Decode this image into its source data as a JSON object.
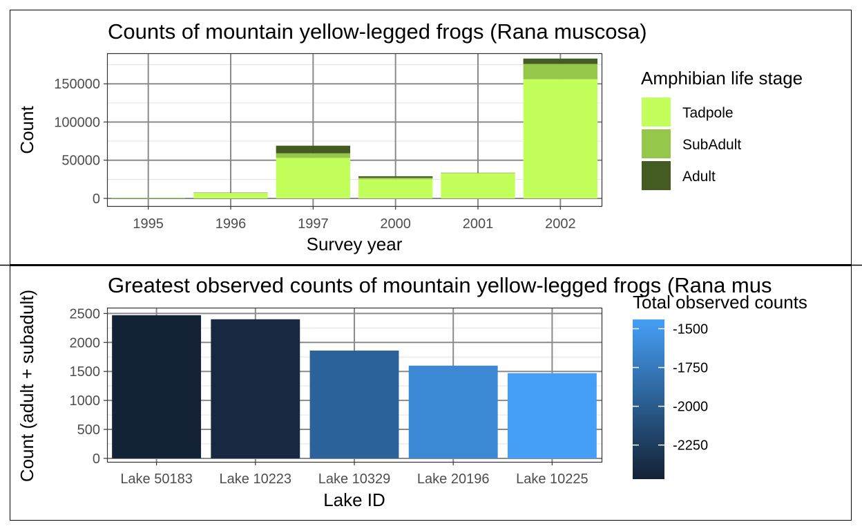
{
  "chart_data": [
    {
      "type": "bar",
      "stacked": true,
      "title": "Counts of mountain yellow-legged frogs (Rana muscosa)",
      "xlabel": "Survey year",
      "ylabel": "Count",
      "categories": [
        "1995",
        "1996",
        "1997",
        "2000",
        "2001",
        "2002"
      ],
      "series": [
        {
          "name": "Tadpole",
          "color": "#c3ff5b",
          "values": [
            600,
            7000,
            53000,
            25000,
            33000,
            156000
          ]
        },
        {
          "name": "SubAdult",
          "color": "#95c84a",
          "values": [
            100,
            300,
            6000,
            2000,
            300,
            20000
          ]
        },
        {
          "name": "Adult",
          "color": "#445c22",
          "values": [
            200,
            300,
            10000,
            2000,
            300,
            7000
          ]
        }
      ],
      "ylim": [
        -10000,
        190000
      ],
      "yticks": [
        0,
        50000,
        100000,
        150000
      ],
      "ytick_labels": [
        "0",
        "50000",
        "100000",
        "150000"
      ],
      "legend": {
        "title": "Amphibian life stage",
        "position": "right"
      },
      "grid": true
    },
    {
      "type": "bar",
      "title": "Greatest observed counts of mountain yellow-legged frogs (Rana mus",
      "xlabel": "Lake ID",
      "ylabel": "Count (adult + subadult)",
      "categories": [
        "Lake 50183",
        "Lake 10223",
        "Lake 10329",
        "Lake 20196",
        "Lake 10225"
      ],
      "values": [
        2470,
        2400,
        1860,
        1600,
        1470
      ],
      "colors": [
        "#132235",
        "#172840",
        "#2a6299",
        "#3b88d4",
        "#459ff6"
      ],
      "ylim": [
        -60,
        2600
      ],
      "yticks": [
        0,
        500,
        1000,
        1500,
        2000,
        2500
      ],
      "ytick_labels": [
        "0",
        "500",
        "1000",
        "1500",
        "2000",
        "2500"
      ],
      "colorbar": {
        "title": "Total observed counts",
        "range": [
          -2470,
          -1440
        ],
        "ticks": [
          -1500,
          -1750,
          -2000,
          -2250
        ],
        "tick_labels": [
          "-1500",
          "-1750",
          "-2000",
          "-2250"
        ],
        "low_color": "#132235",
        "high_color": "#459ff6",
        "position": "right"
      },
      "grid": true
    }
  ]
}
